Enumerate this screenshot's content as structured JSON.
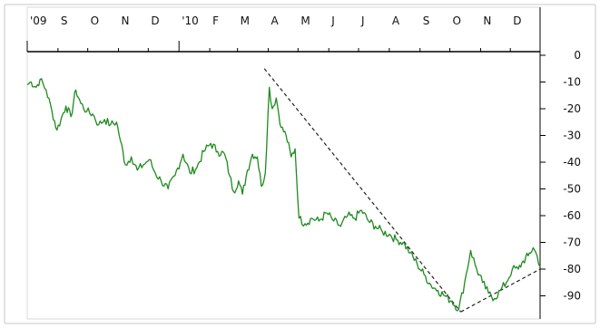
{
  "chart_data": {
    "type": "line",
    "title": "",
    "xlabel": "",
    "ylabel": "",
    "x_tick_labels": [
      "'09",
      "S",
      "O",
      "N",
      "D",
      "'10",
      "F",
      "M",
      "A",
      "M",
      "J",
      "J",
      "A",
      "S",
      "O",
      "N",
      "D"
    ],
    "y_ticks": [
      0,
      -10,
      -20,
      -30,
      -40,
      -50,
      -60,
      -70,
      -80,
      -90
    ],
    "ylim": [
      -100,
      0
    ],
    "xlim": [
      "2009-08-01",
      "2010-12-31"
    ],
    "grid": false,
    "legend": "none",
    "series": [
      {
        "color": "#1e8a1e",
        "points": [
          [
            "2009-08-01",
            -11
          ],
          [
            "2009-08-05",
            -10
          ],
          [
            "2009-08-10",
            -12
          ],
          [
            "2009-08-14",
            -9
          ],
          [
            "2009-08-20",
            -13
          ],
          [
            "2009-08-26",
            -21
          ],
          [
            "2009-08-31",
            -28
          ],
          [
            "2009-09-04",
            -24
          ],
          [
            "2009-09-09",
            -19
          ],
          [
            "2009-09-14",
            -23
          ],
          [
            "2009-09-19",
            -13
          ],
          [
            "2009-09-24",
            -18
          ],
          [
            "2009-09-30",
            -21
          ],
          [
            "2009-10-06",
            -22
          ],
          [
            "2009-10-12",
            -26
          ],
          [
            "2009-10-18",
            -24
          ],
          [
            "2009-10-24",
            -26
          ],
          [
            "2009-10-30",
            -25
          ],
          [
            "2009-11-03",
            -32
          ],
          [
            "2009-11-08",
            -41
          ],
          [
            "2009-11-14",
            -38
          ],
          [
            "2009-11-20",
            -43
          ],
          [
            "2009-11-26",
            -41
          ],
          [
            "2009-12-02",
            -39
          ],
          [
            "2009-12-08",
            -44
          ],
          [
            "2009-12-14",
            -47
          ],
          [
            "2009-12-21",
            -50
          ],
          [
            "2009-12-28",
            -45
          ],
          [
            "2010-01-05",
            -37
          ],
          [
            "2010-01-12",
            -44
          ],
          [
            "2010-01-19",
            -42
          ],
          [
            "2010-01-26",
            -36
          ],
          [
            "2010-02-02",
            -33
          ],
          [
            "2010-02-09",
            -36
          ],
          [
            "2010-02-16",
            -37
          ],
          [
            "2010-02-21",
            -45
          ],
          [
            "2010-02-25",
            -51
          ],
          [
            "2010-03-02",
            -47
          ],
          [
            "2010-03-06",
            -52
          ],
          [
            "2010-03-11",
            -43
          ],
          [
            "2010-03-16",
            -37
          ],
          [
            "2010-03-21",
            -38
          ],
          [
            "2010-03-25",
            -49
          ],
          [
            "2010-03-29",
            -44
          ],
          [
            "2010-04-02",
            -12
          ],
          [
            "2010-04-05",
            -20
          ],
          [
            "2010-04-09",
            -16
          ],
          [
            "2010-04-14",
            -27
          ],
          [
            "2010-04-19",
            -30
          ],
          [
            "2010-04-24",
            -38
          ],
          [
            "2010-04-28",
            -35
          ],
          [
            "2010-05-02",
            -61
          ],
          [
            "2010-05-08",
            -63
          ],
          [
            "2010-05-15",
            -61
          ],
          [
            "2010-05-22",
            -62
          ],
          [
            "2010-05-30",
            -59
          ],
          [
            "2010-06-06",
            -62
          ],
          [
            "2010-06-13",
            -64
          ],
          [
            "2010-06-20",
            -60
          ],
          [
            "2010-06-27",
            -61
          ],
          [
            "2010-07-04",
            -58
          ],
          [
            "2010-07-11",
            -62
          ],
          [
            "2010-07-18",
            -64
          ],
          [
            "2010-07-25",
            -66
          ],
          [
            "2010-08-01",
            -67
          ],
          [
            "2010-08-08",
            -69
          ],
          [
            "2010-08-15",
            -70
          ],
          [
            "2010-08-22",
            -74
          ],
          [
            "2010-08-29",
            -78
          ],
          [
            "2010-09-05",
            -82
          ],
          [
            "2010-09-12",
            -86
          ],
          [
            "2010-09-19",
            -88
          ],
          [
            "2010-09-26",
            -90
          ],
          [
            "2010-10-03",
            -92
          ],
          [
            "2010-10-10",
            -95
          ],
          [
            "2010-10-16",
            -85
          ],
          [
            "2010-10-22",
            -73
          ],
          [
            "2010-10-28",
            -80
          ],
          [
            "2010-11-03",
            -85
          ],
          [
            "2010-11-09",
            -89
          ],
          [
            "2010-11-15",
            -91
          ],
          [
            "2010-11-21",
            -88
          ],
          [
            "2010-11-27",
            -85
          ],
          [
            "2010-12-03",
            -80
          ],
          [
            "2010-12-09",
            -80
          ],
          [
            "2010-12-14",
            -77
          ],
          [
            "2010-12-19",
            -75
          ],
          [
            "2010-12-24",
            -72
          ],
          [
            "2010-12-28",
            -75
          ],
          [
            "2010-12-31",
            -79
          ]
        ]
      }
    ],
    "annotations": [
      {
        "type": "trendline",
        "style": "dashed",
        "from": [
          "2010-03-28",
          -5
        ],
        "to": [
          "2010-10-12",
          -96
        ]
      },
      {
        "type": "trendline",
        "style": "dashed",
        "from": [
          "2010-10-12",
          -96
        ],
        "to": [
          "2010-12-31",
          -80
        ]
      }
    ]
  }
}
